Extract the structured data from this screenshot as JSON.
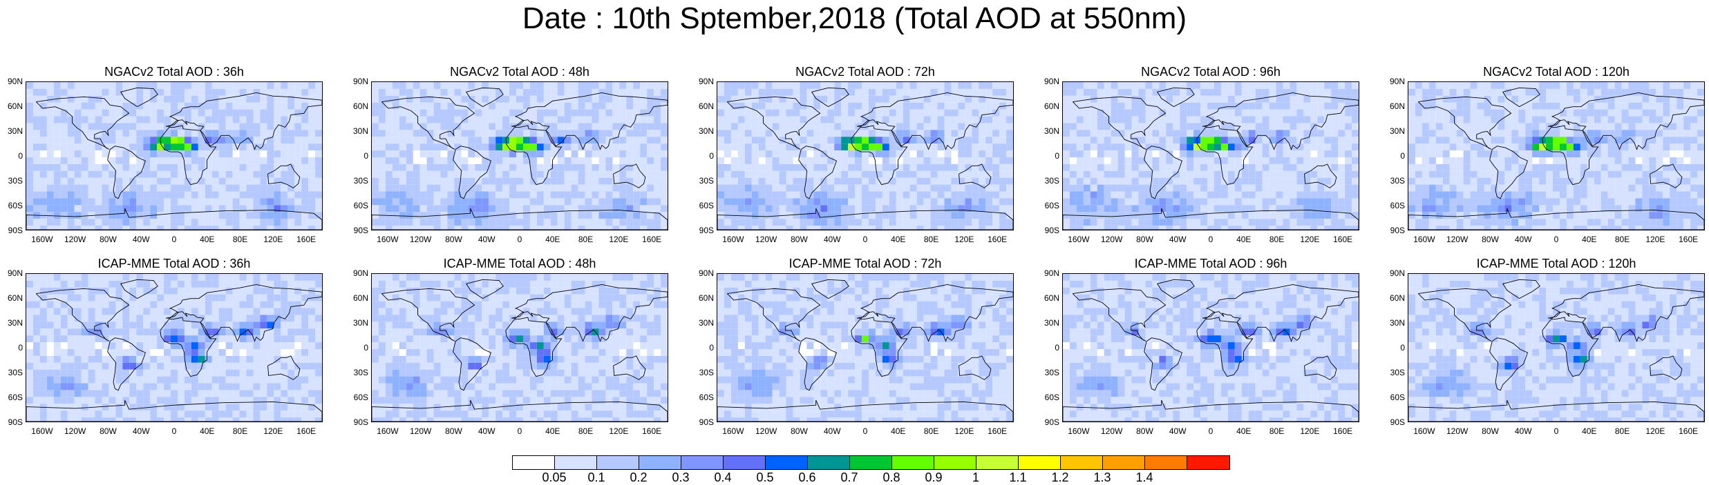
{
  "title": "Date : 10th Sptember,2018 (Total AOD at 550nm)",
  "rows": [
    {
      "model": "NGACv2",
      "panels": [
        {
          "title": "NGACv2 Total AOD : 36h"
        },
        {
          "title": "NGACv2 Total AOD : 48h"
        },
        {
          "title": "NGACv2 Total AOD : 72h"
        },
        {
          "title": "NGACv2 Total AOD : 96h"
        },
        {
          "title": "NGACv2 Total AOD : 120h"
        }
      ]
    },
    {
      "model": "ICAP-MME",
      "panels": [
        {
          "title": "ICAP-MME Total AOD : 36h"
        },
        {
          "title": "ICAP-MME Total AOD : 48h"
        },
        {
          "title": "ICAP-MME Total AOD : 72h"
        },
        {
          "title": "ICAP-MME Total AOD : 96h"
        },
        {
          "title": "ICAP-MME Total AOD : 120h"
        }
      ]
    }
  ],
  "lat_ticks": [
    "90N",
    "60N",
    "30N",
    "0",
    "30S",
    "60S",
    "90S"
  ],
  "lon_ticks": [
    "160W",
    "120W",
    "80W",
    "40W",
    "0",
    "40E",
    "80E",
    "120E",
    "160E"
  ],
  "colorbar": {
    "labels": [
      "0.05",
      "0.1",
      "0.2",
      "0.3",
      "0.4",
      "0.5",
      "0.6",
      "0.7",
      "0.8",
      "0.9",
      "1",
      "1.1",
      "1.2",
      "1.3",
      "1.4"
    ],
    "colors": [
      "#ffffff",
      "#d6e2ff",
      "#b5c9ff",
      "#8eb2ff",
      "#7f96ff",
      "#6370f8",
      "#0063ff",
      "#009696",
      "#00c633",
      "#63ff00",
      "#96ff00",
      "#c6ff33",
      "#ffff00",
      "#ffc600",
      "#ffa000",
      "#ff7c00",
      "#ff1900"
    ]
  }
}
